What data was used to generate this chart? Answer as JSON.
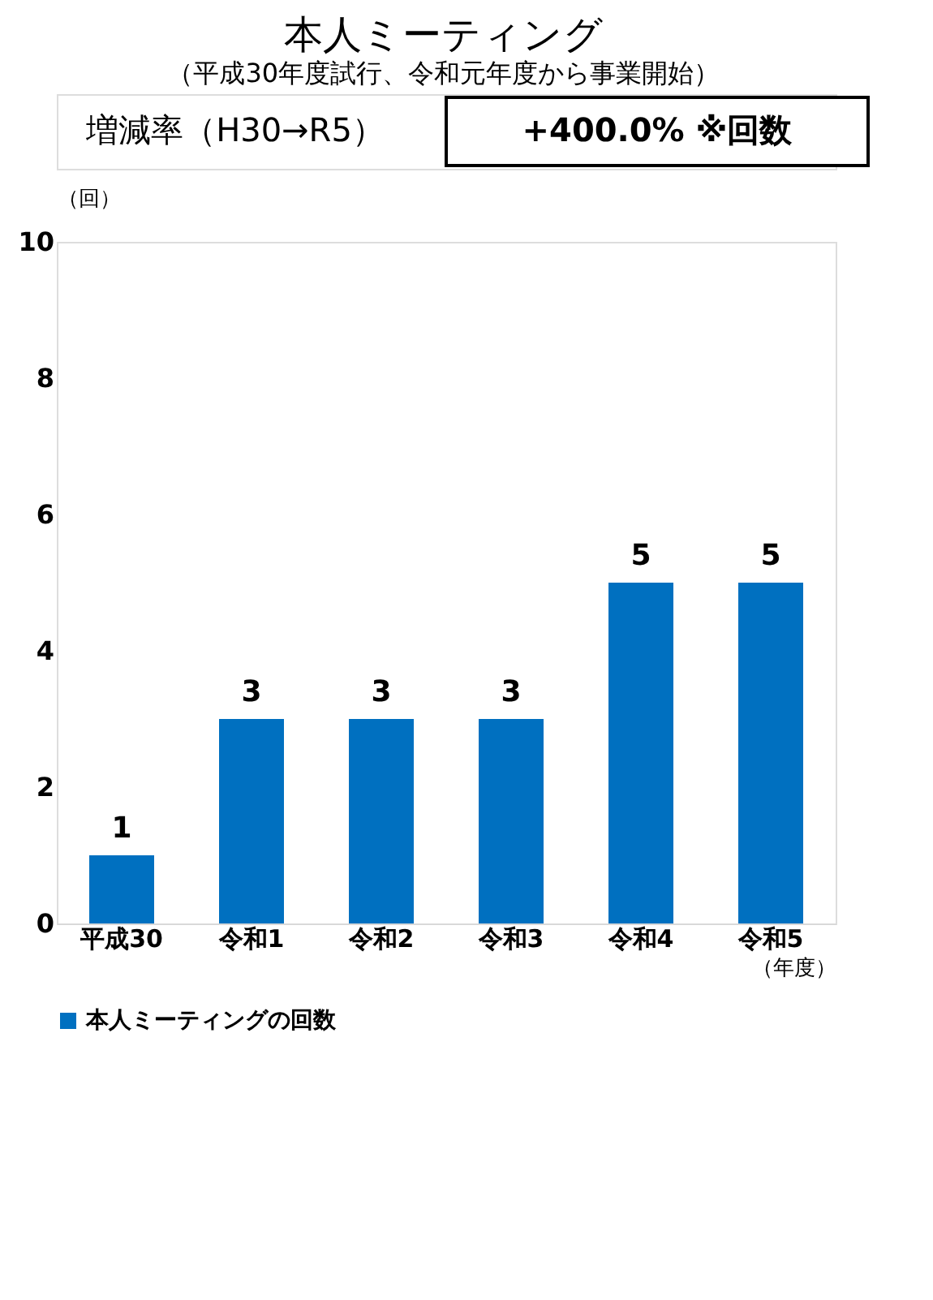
{
  "chart_data": {
    "type": "bar",
    "title": "本人ミーティング",
    "subtitle": "（平成30年度試行、令和元年度から事業開始）",
    "annotations": [
      "増減率（H30→R5）",
      "+400.0% ※回数"
    ],
    "categories": [
      "平成30",
      "令和1",
      "令和2",
      "令和3",
      "令和4",
      "令和5"
    ],
    "series": [
      {
        "name": "本人ミーティングの回数",
        "color": "#0070c0",
        "values": [
          1,
          3,
          3,
          3,
          5,
          5
        ]
      }
    ],
    "ylabel": "（回）",
    "xlabel": "（年度）",
    "ylim": [
      0,
      10
    ],
    "yticks": [
      0,
      2,
      4,
      6,
      8,
      10
    ],
    "data_labels": true,
    "grid": false,
    "legend": "bottom"
  }
}
